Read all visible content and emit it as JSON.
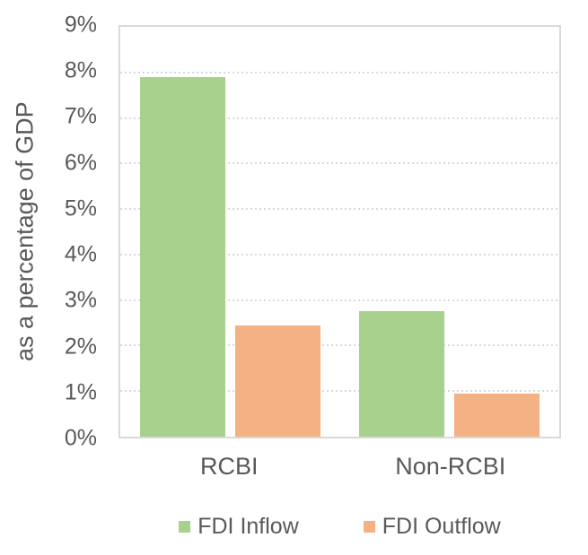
{
  "chart_data": {
    "type": "bar",
    "title": "",
    "categories": [
      "RCBI",
      "Non-RCBI"
    ],
    "series": [
      {
        "name": "FDI Inflow",
        "color": "#A9D18E",
        "values": [
          7.9,
          2.75
        ]
      },
      {
        "name": "FDI Outflow",
        "color": "#F4B183",
        "values": [
          2.45,
          0.95
        ]
      }
    ],
    "xlabel": "",
    "ylabel": "as a percentage of GDP",
    "ylim": [
      0,
      9
    ],
    "ytick_step": 1,
    "ytick_suffix": "%",
    "grid": "dotted-horizontal",
    "grid_color": "#d9d9d9",
    "axis_border_color": "#d9d9d9",
    "text_color": "#595959",
    "legend_position": "bottom"
  }
}
